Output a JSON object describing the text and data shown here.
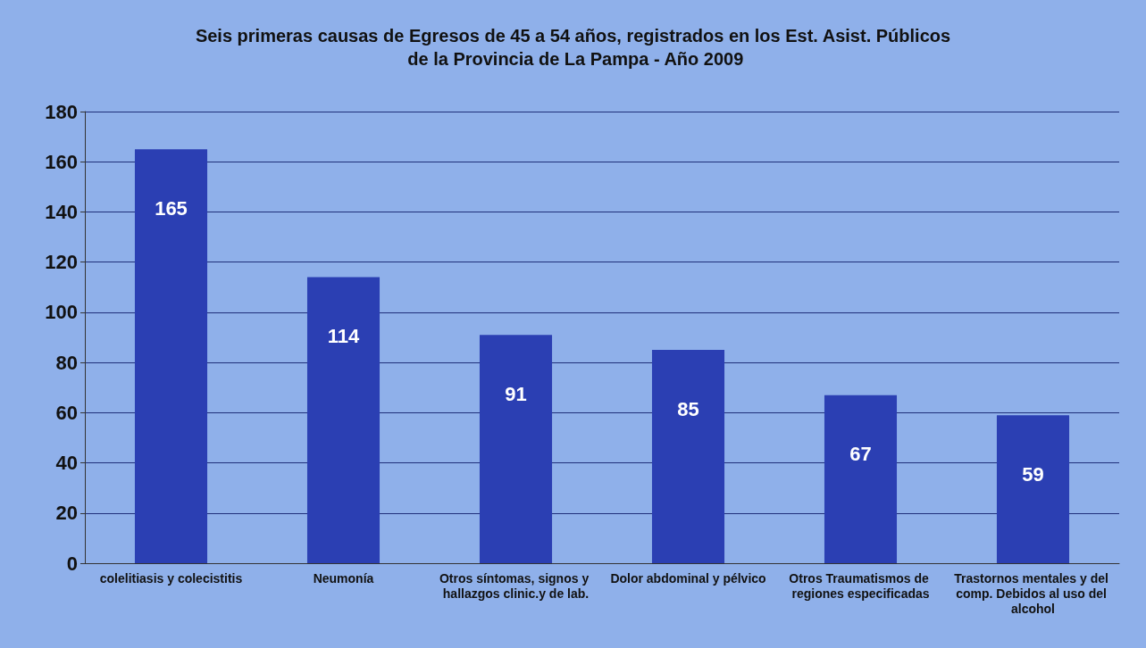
{
  "chart_data": {
    "type": "bar",
    "title": "Seis primeras causas de Egresos de 45 a 54 años, registrados en los Est. Asist. Públicos de la Provincia de La Pampa - Año 2009",
    "categories": [
      "colelitiasis y colecistitis",
      "Neumonía",
      "Otros síntomas, signos y hallazgos clinic.y de lab.",
      "Dolor abdominal y pélvico",
      "Otros Traumatismos de regiones especificadas",
      "Trastornos mentales y del comp. Debidos al uso del alcohol"
    ],
    "values": [
      165,
      114,
      91,
      85,
      67,
      59
    ],
    "color": "#2b3fb3",
    "ylim": [
      0,
      180
    ],
    "yticks": [
      0,
      20,
      40,
      60,
      80,
      100,
      120,
      140,
      160,
      180
    ],
    "grid": "y",
    "data_labels": true
  }
}
